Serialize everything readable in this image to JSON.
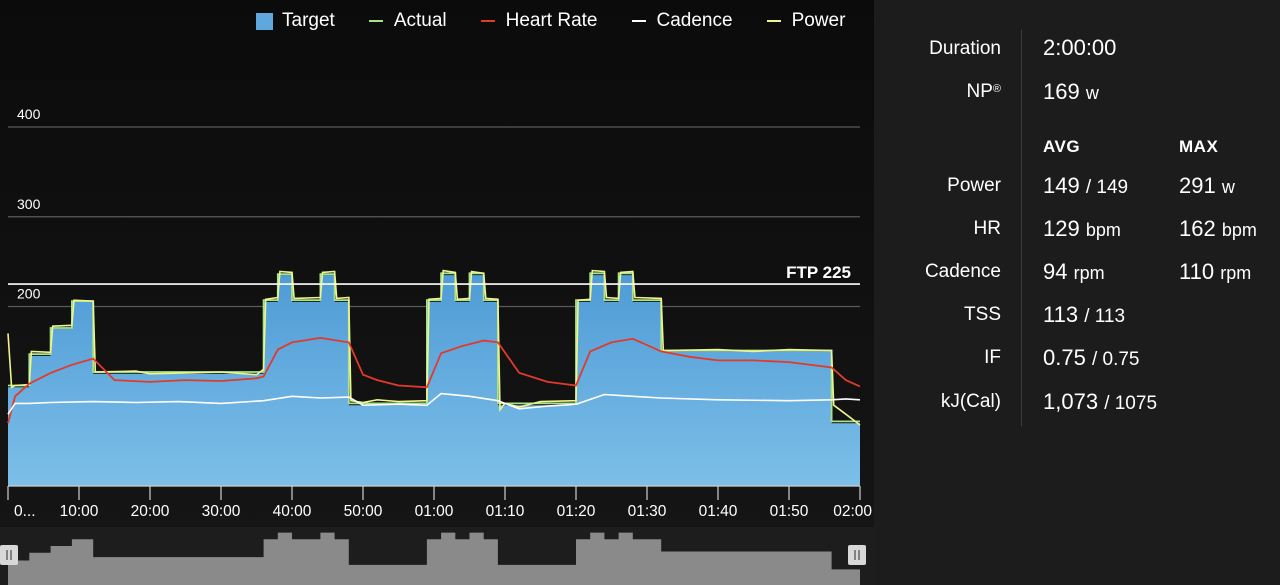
{
  "legend": [
    {
      "label": "Target",
      "color": "#5fa8dd",
      "kind": "box"
    },
    {
      "label": "Actual",
      "color": "#a9e28a",
      "kind": "line"
    },
    {
      "label": "Heart Rate",
      "color": "#e23a2a",
      "kind": "line"
    },
    {
      "label": "Cadence",
      "color": "#ffffff",
      "kind": "line"
    },
    {
      "label": "Power",
      "color": "#eef58c",
      "kind": "line"
    }
  ],
  "chart_data": {
    "type": "area",
    "x_unit": "minutes",
    "xlim": [
      0,
      120
    ],
    "ylim": [
      0,
      400
    ],
    "y_ticks": [
      200,
      300,
      400
    ],
    "x_ticks": [
      {
        "label": "0...",
        "value": 1
      },
      {
        "label": "10:00",
        "value": 10
      },
      {
        "label": "20:00",
        "value": 20
      },
      {
        "label": "30:00",
        "value": 30
      },
      {
        "label": "40:00",
        "value": 40
      },
      {
        "label": "50:00",
        "value": 50
      },
      {
        "label": "01:00",
        "value": 60
      },
      {
        "label": "01:10",
        "value": 70
      },
      {
        "label": "01:20",
        "value": 80
      },
      {
        "label": "01:30",
        "value": 90
      },
      {
        "label": "01:40",
        "value": 100
      },
      {
        "label": "01:50",
        "value": 110
      },
      {
        "label": "02:00",
        "value": 120
      }
    ],
    "ftp": {
      "label": "FTP 225",
      "value": 225
    },
    "series": [
      {
        "name": "Target",
        "color": "#5fa8dd",
        "x": [
          0,
          3,
          3,
          6,
          6,
          9,
          9,
          12,
          12,
          36,
          36,
          38,
          38,
          40,
          40,
          44,
          44,
          46,
          46,
          48,
          48,
          59,
          59,
          61,
          61,
          63,
          63,
          65,
          65,
          67,
          67,
          69,
          69,
          80,
          80,
          82,
          82,
          84,
          84,
          86,
          86,
          88,
          88,
          92,
          92,
          116,
          116,
          120
        ],
        "y": [
          110,
          110,
          145,
          145,
          175,
          175,
          205,
          205,
          125,
          125,
          205,
          205,
          235,
          235,
          205,
          205,
          235,
          235,
          205,
          205,
          90,
          90,
          205,
          205,
          235,
          235,
          205,
          205,
          235,
          235,
          205,
          205,
          90,
          90,
          205,
          205,
          235,
          235,
          205,
          205,
          235,
          235,
          205,
          205,
          150,
          150,
          70,
          70
        ]
      },
      {
        "name": "Actual",
        "color": "#a9e28a",
        "x": [
          0,
          3,
          3,
          6,
          6,
          9,
          9,
          12,
          12,
          36,
          36,
          38,
          38,
          40,
          40,
          44,
          44,
          46,
          46,
          48,
          48,
          59,
          59,
          61,
          61,
          63,
          63,
          65,
          65,
          67,
          67,
          69,
          69,
          80,
          80,
          82,
          82,
          84,
          84,
          86,
          86,
          88,
          88,
          92,
          92,
          116,
          116,
          120
        ],
        "y": [
          112,
          112,
          147,
          147,
          176,
          176,
          206,
          206,
          127,
          127,
          207,
          207,
          236,
          236,
          207,
          207,
          236,
          236,
          207,
          207,
          92,
          92,
          207,
          207,
          237,
          237,
          207,
          207,
          237,
          237,
          207,
          207,
          92,
          92,
          207,
          207,
          237,
          237,
          207,
          207,
          237,
          237,
          207,
          207,
          151,
          151,
          72,
          72
        ]
      },
      {
        "name": "Power",
        "color": "#eef58c",
        "x": [
          0,
          0.5,
          1,
          3,
          3.3,
          6,
          6.3,
          9,
          9.3,
          12,
          12.3,
          18,
          20,
          25,
          30,
          35,
          36,
          36.3,
          38,
          38.3,
          40,
          40.3,
          44,
          44.3,
          46,
          46.3,
          48,
          48.3,
          50,
          52,
          55,
          59,
          59.3,
          61,
          61.3,
          63,
          63.3,
          65,
          65.3,
          67,
          67.3,
          69,
          69.3,
          70,
          72,
          75,
          80,
          80.3,
          82,
          82.3,
          84,
          84.3,
          86,
          86.3,
          88,
          88.3,
          92,
          92.3,
          100,
          105,
          110,
          116,
          116.3,
          118,
          120
        ],
        "y": [
          170,
          110,
          112,
          113,
          150,
          149,
          178,
          179,
          207,
          206,
          127,
          128,
          125,
          126,
          127,
          124,
          130,
          208,
          210,
          239,
          238,
          209,
          210,
          238,
          239,
          209,
          210,
          95,
          93,
          96,
          94,
          95,
          208,
          209,
          240,
          238,
          208,
          209,
          239,
          237,
          209,
          208,
          85,
          92,
          88,
          94,
          95,
          207,
          208,
          240,
          239,
          210,
          209,
          238,
          239,
          210,
          209,
          151,
          152,
          150,
          152,
          151,
          90,
          80,
          68
        ]
      },
      {
        "name": "Heart Rate",
        "color": "#e23a2a",
        "x": [
          0,
          1,
          3,
          6,
          9,
          12,
          15,
          20,
          25,
          30,
          35,
          36,
          38,
          40,
          44,
          48,
          50,
          52,
          55,
          59,
          61,
          64,
          67,
          69,
          72,
          76,
          80,
          82,
          85,
          88,
          92,
          96,
          100,
          105,
          110,
          116,
          118,
          120
        ],
        "y": [
          70,
          100,
          114,
          126,
          135,
          142,
          118,
          116,
          118,
          117,
          120,
          122,
          152,
          160,
          165,
          160,
          124,
          118,
          112,
          110,
          148,
          156,
          162,
          160,
          126,
          116,
          112,
          150,
          160,
          164,
          150,
          144,
          140,
          140,
          138,
          132,
          118,
          111
        ]
      },
      {
        "name": "Cadence",
        "color": "#ffffff",
        "x": [
          0,
          1,
          3,
          6,
          12,
          18,
          24,
          30,
          36,
          40,
          44,
          48,
          50,
          55,
          59,
          61,
          65,
          69,
          72,
          76,
          80,
          84,
          88,
          92,
          100,
          110,
          116,
          118,
          120
        ],
        "y": [
          80,
          92,
          92,
          93,
          94,
          93,
          94,
          92,
          95,
          100,
          98,
          99,
          90,
          91,
          90,
          103,
          100,
          95,
          86,
          89,
          91,
          102,
          100,
          98,
          96,
          95,
          96,
          97,
          96
        ]
      }
    ]
  },
  "stats": {
    "duration": {
      "label": "Duration",
      "value": "2:00:00"
    },
    "np": {
      "label": "NP",
      "reg": "®",
      "value": "169",
      "unit": "w"
    },
    "col_avg": "AVG",
    "col_max": "MAX",
    "rows": [
      {
        "label": "Power",
        "avg": "149",
        "avg_sep": "/ 149",
        "avg_unit": "",
        "max": "291",
        "max_unit": "w"
      },
      {
        "label": "HR",
        "avg": "129",
        "avg_sep": "",
        "avg_unit": "bpm",
        "max": "162",
        "max_unit": "bpm"
      },
      {
        "label": "Cadence",
        "avg": "94",
        "avg_sep": "",
        "avg_unit": "rpm",
        "max": "110",
        "max_unit": "rpm"
      },
      {
        "label": "TSS",
        "avg": "113",
        "avg_sep": "/ 113",
        "avg_unit": "",
        "max": "",
        "max_unit": ""
      },
      {
        "label": "IF",
        "avg": "0.75",
        "avg_sep": "/ 0.75",
        "avg_unit": "",
        "max": "",
        "max_unit": ""
      },
      {
        "label": "kJ(Cal)",
        "avg": "1,073",
        "avg_sep": "/ 1075",
        "avg_unit": "",
        "max": "",
        "max_unit": ""
      }
    ]
  }
}
